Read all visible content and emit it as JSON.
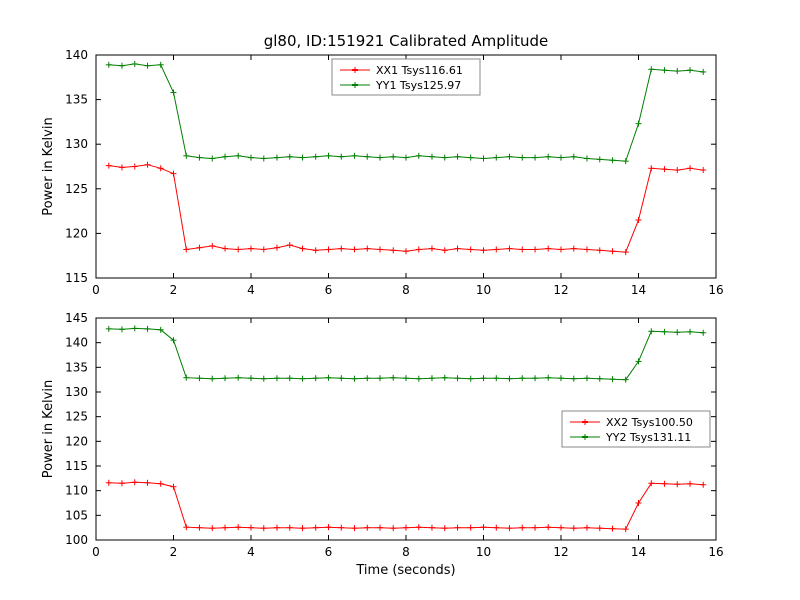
{
  "figure": {
    "title": "gl80, ID:151921 Calibrated Amplitude"
  },
  "chart_data": [
    {
      "type": "line",
      "ylabel": "Power in Kelvin",
      "xlabel": "",
      "xlim": [
        0,
        16
      ],
      "ylim": [
        115,
        140
      ],
      "xtick_step": 2,
      "ytick_step": 5,
      "grid": false,
      "marker": "+",
      "legend_position": "top-center",
      "x": [
        0.33,
        0.67,
        1.0,
        1.33,
        1.67,
        2.0,
        2.33,
        2.67,
        3.0,
        3.33,
        3.67,
        4.0,
        4.33,
        4.67,
        5.0,
        5.33,
        5.67,
        6.0,
        6.33,
        6.67,
        7.0,
        7.33,
        7.67,
        8.0,
        8.33,
        8.67,
        9.0,
        9.33,
        9.67,
        10.0,
        10.33,
        10.67,
        11.0,
        11.33,
        11.67,
        12.0,
        12.33,
        12.67,
        13.0,
        13.33,
        13.67,
        14.0,
        14.33,
        14.67,
        15.0,
        15.33,
        15.67
      ],
      "series": [
        {
          "name": "XX1 Tsys116.61",
          "color": "#ff0000",
          "values": [
            127.6,
            127.4,
            127.5,
            127.7,
            127.3,
            126.7,
            118.2,
            118.4,
            118.6,
            118.3,
            118.2,
            118.3,
            118.2,
            118.4,
            118.7,
            118.3,
            118.1,
            118.2,
            118.3,
            118.2,
            118.3,
            118.2,
            118.1,
            118.0,
            118.2,
            118.3,
            118.1,
            118.3,
            118.2,
            118.1,
            118.2,
            118.3,
            118.2,
            118.2,
            118.3,
            118.2,
            118.3,
            118.2,
            118.1,
            118.0,
            117.9,
            121.5,
            127.3,
            127.2,
            127.1,
            127.3,
            127.1
          ]
        },
        {
          "name": "YY1 Tsys125.97",
          "color": "#007f00",
          "values": [
            138.9,
            138.8,
            139.0,
            138.8,
            138.9,
            135.8,
            128.7,
            128.5,
            128.4,
            128.6,
            128.7,
            128.5,
            128.4,
            128.5,
            128.6,
            128.5,
            128.6,
            128.7,
            128.6,
            128.7,
            128.6,
            128.5,
            128.6,
            128.5,
            128.7,
            128.6,
            128.5,
            128.6,
            128.5,
            128.4,
            128.5,
            128.6,
            128.5,
            128.5,
            128.6,
            128.5,
            128.6,
            128.4,
            128.3,
            128.2,
            128.1,
            132.3,
            138.4,
            138.3,
            138.2,
            138.3,
            138.1
          ]
        }
      ]
    },
    {
      "type": "line",
      "ylabel": "Power in Kelvin",
      "xlabel": "Time (seconds)",
      "xlim": [
        0,
        16
      ],
      "ylim": [
        100,
        145
      ],
      "xtick_step": 2,
      "ytick_step": 5,
      "grid": false,
      "marker": "+",
      "legend_position": "middle-right",
      "x": [
        0.33,
        0.67,
        1.0,
        1.33,
        1.67,
        2.0,
        2.33,
        2.67,
        3.0,
        3.33,
        3.67,
        4.0,
        4.33,
        4.67,
        5.0,
        5.33,
        5.67,
        6.0,
        6.33,
        6.67,
        7.0,
        7.33,
        7.67,
        8.0,
        8.33,
        8.67,
        9.0,
        9.33,
        9.67,
        10.0,
        10.33,
        10.67,
        11.0,
        11.33,
        11.67,
        12.0,
        12.33,
        12.67,
        13.0,
        13.33,
        13.67,
        14.0,
        14.33,
        14.67,
        15.0,
        15.33,
        15.67
      ],
      "series": [
        {
          "name": "XX2 Tsys100.50",
          "color": "#ff0000",
          "values": [
            111.6,
            111.5,
            111.7,
            111.6,
            111.4,
            110.8,
            102.6,
            102.5,
            102.4,
            102.5,
            102.6,
            102.5,
            102.4,
            102.5,
            102.5,
            102.4,
            102.5,
            102.6,
            102.5,
            102.4,
            102.5,
            102.5,
            102.4,
            102.5,
            102.6,
            102.5,
            102.4,
            102.5,
            102.5,
            102.6,
            102.5,
            102.4,
            102.5,
            102.5,
            102.6,
            102.5,
            102.4,
            102.5,
            102.4,
            102.3,
            102.2,
            107.5,
            111.5,
            111.4,
            111.3,
            111.4,
            111.2
          ]
        },
        {
          "name": "YY2 Tsys131.11",
          "color": "#007f00",
          "values": [
            142.8,
            142.7,
            142.9,
            142.8,
            142.6,
            140.5,
            132.9,
            132.8,
            132.7,
            132.8,
            132.9,
            132.8,
            132.7,
            132.8,
            132.8,
            132.7,
            132.8,
            132.9,
            132.8,
            132.7,
            132.8,
            132.8,
            132.9,
            132.8,
            132.7,
            132.8,
            132.9,
            132.8,
            132.7,
            132.8,
            132.8,
            132.7,
            132.8,
            132.8,
            132.9,
            132.8,
            132.7,
            132.8,
            132.7,
            132.6,
            132.5,
            136.2,
            142.3,
            142.2,
            142.1,
            142.2,
            142.0
          ]
        }
      ]
    }
  ]
}
